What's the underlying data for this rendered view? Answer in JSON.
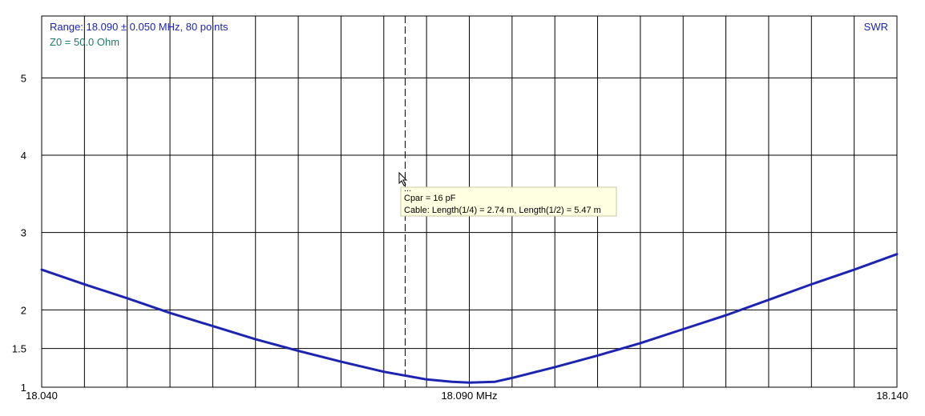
{
  "chart_data": {
    "type": "line",
    "range_label": "Range: 18.090 ± 0.050 MHz, 80 points",
    "z0_label": "Z0 = 50.0 Ohm",
    "series_label": "SWR",
    "xlim": [
      18.04,
      18.14
    ],
    "ylim": [
      1,
      5.8
    ],
    "x_ticks": [
      {
        "value": 18.04,
        "label": "18.040"
      },
      {
        "value": 18.09,
        "label": "18.090 MHz"
      },
      {
        "value": 18.14,
        "label": "18.140"
      }
    ],
    "y_ticks": [
      {
        "value": 1,
        "label": "1"
      },
      {
        "value": 1.5,
        "label": "1.5"
      },
      {
        "value": 2,
        "label": "2"
      },
      {
        "value": 3,
        "label": "3"
      },
      {
        "value": 4,
        "label": "4"
      },
      {
        "value": 5,
        "label": "5"
      }
    ],
    "grid": true,
    "grid_x_divisions": 20,
    "cursor_x": 18.0825,
    "series": [
      {
        "color": "#1c24b0",
        "x": [
          18.04,
          18.045,
          18.05,
          18.055,
          18.06,
          18.065,
          18.07,
          18.075,
          18.08,
          18.085,
          18.088,
          18.09,
          18.093,
          18.095,
          18.1,
          18.105,
          18.11,
          18.115,
          18.12,
          18.125,
          18.13,
          18.135,
          18.14
        ],
        "y": [
          2.52,
          2.33,
          2.15,
          1.96,
          1.79,
          1.62,
          1.47,
          1.33,
          1.2,
          1.1,
          1.07,
          1.06,
          1.07,
          1.12,
          1.26,
          1.41,
          1.57,
          1.75,
          1.93,
          2.13,
          2.33,
          2.52,
          2.72
        ]
      }
    ]
  },
  "tooltip": {
    "line_partial": "...",
    "line_cpar": "Cpar = 16 pF",
    "line_cable": "Cable: Length(1/4) = 2.74 m, Length(1/2) = 5.47 m"
  },
  "colors": {
    "range_text": "#1c24b0",
    "z0_text": "#1f7a6a",
    "series_label": "#1c24b0",
    "grid": "#000000",
    "tooltip_bg": "#ffffe1"
  }
}
